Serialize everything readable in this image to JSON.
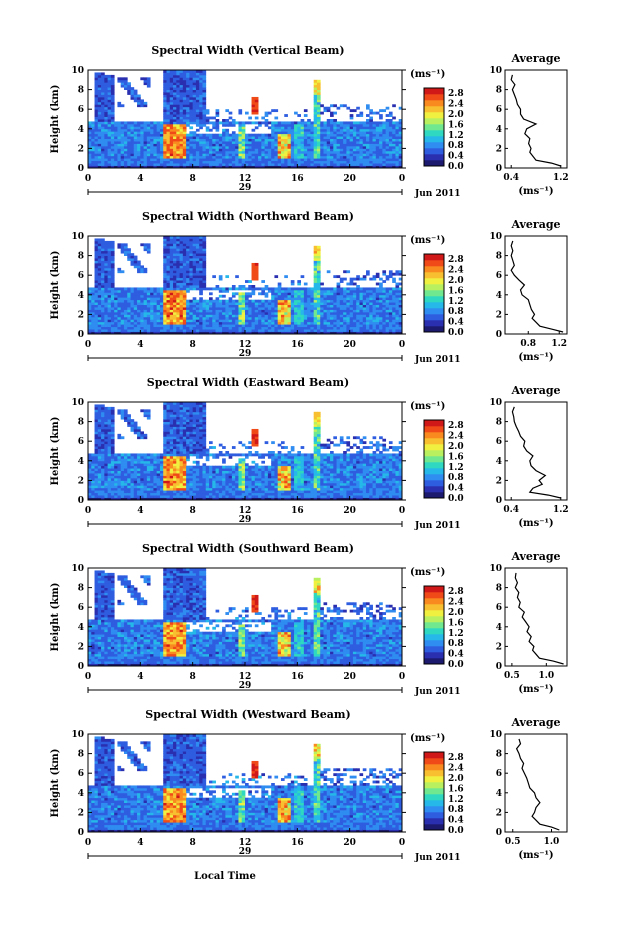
{
  "chart_data": {
    "type": "heatmap",
    "colorbar": {
      "unit": "(ms⁻¹)",
      "ticks": [
        "0.0",
        "0.4",
        "0.8",
        "1.2",
        "1.6",
        "2.0",
        "2.4",
        "2.8"
      ],
      "range": [
        0,
        3.0
      ],
      "colors": [
        "#1b1a6e",
        "#2a2fb0",
        "#2f5de0",
        "#2f8cf0",
        "#25b8e8",
        "#2fd8c0",
        "#6fe890",
        "#b8f060",
        "#f0f040",
        "#f8c030",
        "#f88a20",
        "#f04a18",
        "#d01818"
      ]
    },
    "xticks": [
      "0",
      "4",
      "8",
      "12",
      "16",
      "20",
      "0"
    ],
    "xlim": [
      0,
      24
    ],
    "date_day": "29",
    "date_month": "Jun 2011",
    "xlabel": "Local Time",
    "ylabel": "Height (km)",
    "yticks": [
      "0",
      "2",
      "4",
      "6",
      "8",
      "10"
    ],
    "ylim": [
      0,
      10
    ],
    "avg_title": "Average",
    "avg_xlabel": "(ms⁻¹)",
    "panels": [
      {
        "title": "Spectral Width (Vertical Beam)",
        "avg_xticks": [
          "0.4",
          "1.2"
        ],
        "avg_xlim": [
          0.3,
          1.3
        ],
        "avg_h": [
          0.2,
          0.5,
          0.8,
          1.2,
          1.6,
          2.0,
          2.5,
          3.0,
          3.5,
          4.0,
          4.5,
          5.0,
          5.5,
          6.0,
          6.5,
          7.0,
          7.5,
          8.0,
          8.5,
          9.0,
          9.5
        ],
        "avg_v": [
          1.2,
          1.05,
          0.8,
          0.75,
          0.7,
          0.72,
          0.68,
          0.7,
          0.62,
          0.65,
          0.8,
          0.6,
          0.55,
          0.55,
          0.5,
          0.48,
          0.45,
          0.42,
          0.46,
          0.4,
          0.42
        ]
      },
      {
        "title": "Spectral Width (Northward Beam)",
        "avg_xticks": [
          "0.8",
          "1.2"
        ],
        "avg_xlim": [
          0.5,
          1.3
        ],
        "avg_h": [
          0.2,
          0.5,
          0.8,
          1.2,
          1.6,
          2.0,
          2.5,
          3.0,
          3.5,
          4.0,
          4.5,
          5.0,
          5.5,
          6.0,
          6.5,
          7.0,
          7.5,
          8.0,
          8.5,
          9.0,
          9.5
        ],
        "avg_v": [
          1.25,
          1.1,
          0.95,
          0.9,
          0.85,
          0.88,
          0.84,
          0.82,
          0.8,
          0.72,
          0.7,
          0.75,
          0.68,
          0.62,
          0.58,
          0.62,
          0.6,
          0.58,
          0.6,
          0.58,
          0.6
        ]
      },
      {
        "title": "Spectral Width (Eastward Beam)",
        "avg_xticks": [
          "0.4",
          "1.2"
        ],
        "avg_xlim": [
          0.3,
          1.3
        ],
        "avg_h": [
          0.2,
          0.5,
          0.8,
          1.2,
          1.6,
          2.0,
          2.5,
          3.0,
          3.5,
          4.0,
          4.5,
          5.0,
          5.5,
          6.0,
          6.5,
          7.0,
          7.5,
          8.0,
          8.5,
          9.0,
          9.5
        ],
        "avg_v": [
          1.2,
          1.0,
          0.7,
          0.75,
          0.9,
          0.85,
          0.95,
          0.8,
          0.72,
          0.7,
          0.75,
          0.65,
          0.6,
          0.62,
          0.55,
          0.52,
          0.48,
          0.45,
          0.44,
          0.42,
          0.45
        ]
      },
      {
        "title": "Spectral Width (Southward Beam)",
        "avg_xticks": [
          "0.5",
          "1.0"
        ],
        "avg_xlim": [
          0.4,
          1.3
        ],
        "avg_h": [
          0.2,
          0.5,
          0.8,
          1.2,
          1.6,
          2.0,
          2.5,
          3.0,
          3.5,
          4.0,
          4.5,
          5.0,
          5.5,
          6.0,
          6.5,
          7.0,
          7.5,
          8.0,
          8.5,
          9.0,
          9.5
        ],
        "avg_v": [
          1.25,
          1.1,
          0.9,
          0.85,
          0.8,
          0.82,
          0.75,
          0.78,
          0.72,
          0.75,
          0.7,
          0.65,
          0.68,
          0.6,
          0.62,
          0.58,
          0.6,
          0.55,
          0.58,
          0.55,
          0.56
        ]
      },
      {
        "title": "Spectral Width (Westward Beam)",
        "avg_xticks": [
          "0.5",
          "1.0"
        ],
        "avg_xlim": [
          0.4,
          1.2
        ],
        "avg_h": [
          0.2,
          0.5,
          0.8,
          1.2,
          1.6,
          2.0,
          2.5,
          3.0,
          3.5,
          4.0,
          4.5,
          5.0,
          5.5,
          6.0,
          6.5,
          7.0,
          7.5,
          8.0,
          8.5,
          9.0,
          9.5
        ],
        "avg_v": [
          1.1,
          1.0,
          0.85,
          0.8,
          0.75,
          0.78,
          0.8,
          0.85,
          0.8,
          0.78,
          0.72,
          0.7,
          0.68,
          0.65,
          0.62,
          0.64,
          0.6,
          0.58,
          0.55,
          0.6,
          0.58
        ]
      }
    ]
  }
}
